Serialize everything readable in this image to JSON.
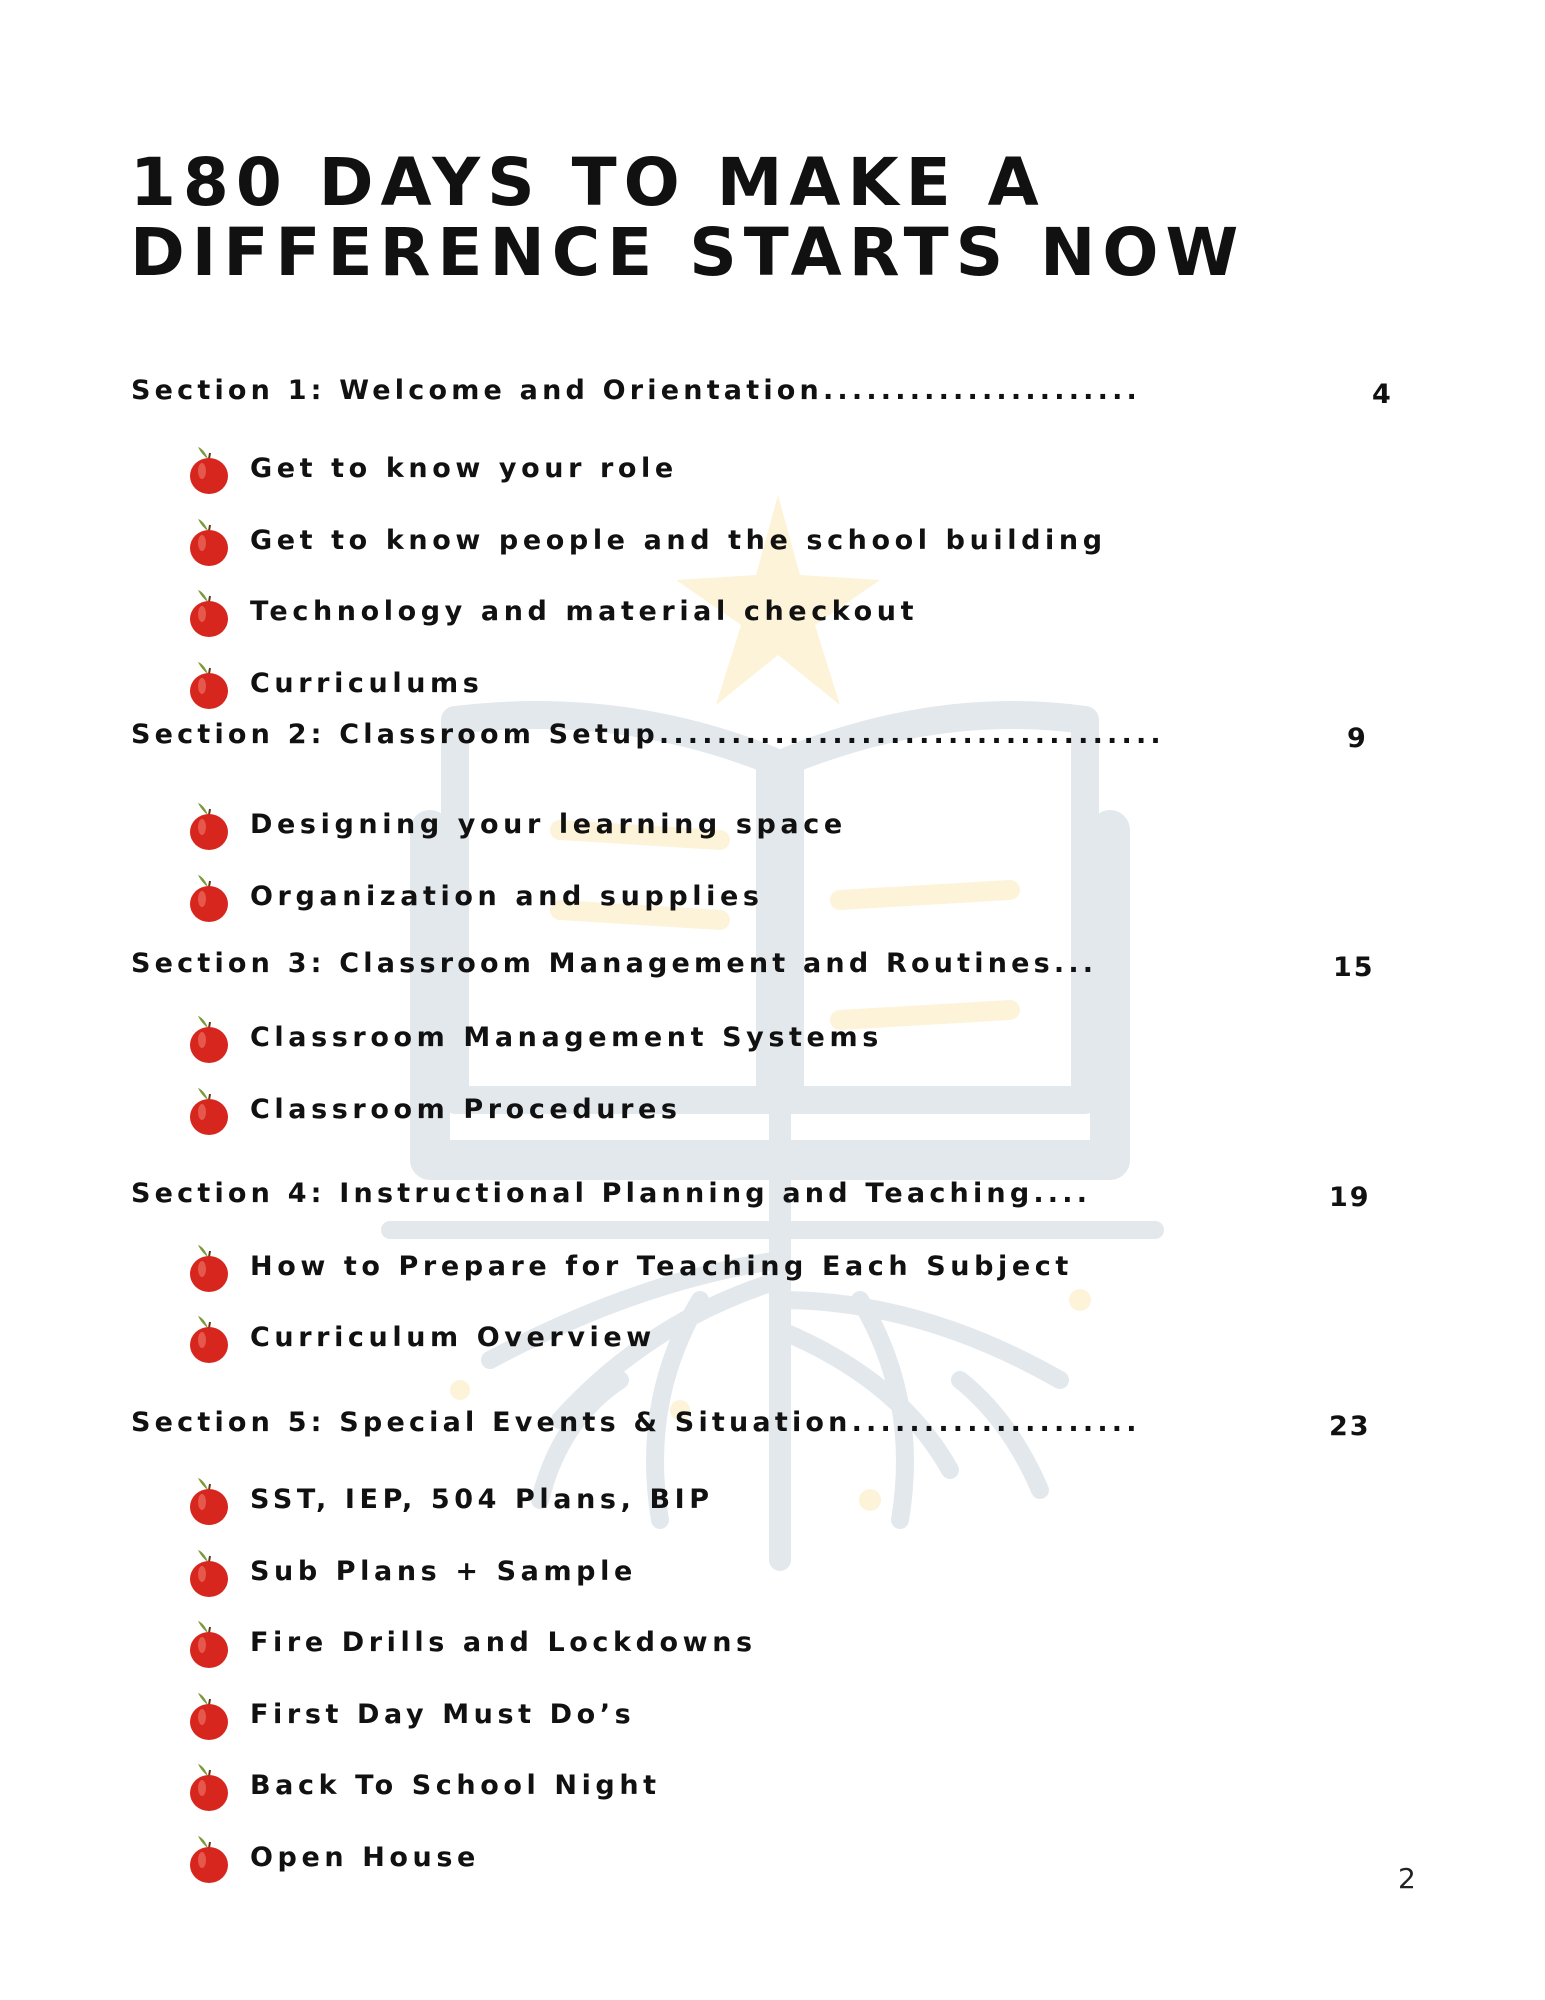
{
  "title": {
    "line1": "180 DAYS TO MAKE A",
    "line2": "DIFFERENCE STARTS NOW"
  },
  "sections": [
    {
      "label": "Section 1: Welcome and Orientation......................",
      "page": "4",
      "items": [
        "Get to know your role",
        "Get to know people and the school building",
        "Technology and material checkout",
        "Curriculums"
      ]
    },
    {
      "label": "Section 2: Classroom Setup...................................",
      "page": "9",
      "items": [
        "Designing your learning space",
        "Organization and supplies"
      ]
    },
    {
      "label": "Section 3: Classroom Management and Routines...",
      "page": "15",
      "items": [
        "Classroom Management Systems",
        "Classroom Procedures"
      ]
    },
    {
      "label": "Section 4: Instructional Planning and Teaching....",
      "page": "19",
      "items": [
        "How to Prepare for Teaching Each Subject",
        "Curriculum Overview"
      ]
    },
    {
      "label": "Section 5: Special Events & Situation....................",
      "page": "23",
      "items": [
        "SST, IEP, 504 Plans, BIP",
        "Sub Plans + Sample",
        "Fire Drills and Lockdowns",
        "First Day Must Do’s",
        "Back To School Night",
        "Open House"
      ]
    }
  ],
  "bullet_icon": "apple-icon",
  "page_number": "2",
  "colors": {
    "watermark_gray": "#e3e8ec",
    "watermark_yellow": "#fdf3d9",
    "apple_red": "#d7261e"
  }
}
